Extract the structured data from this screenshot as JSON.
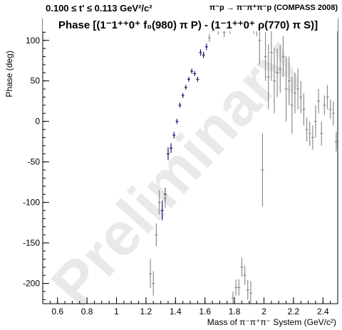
{
  "header": {
    "left": "0.100 ≤ t' ≤ 0.113 GeV²/c²",
    "right": "π⁻p → π⁻π⁺π⁻p (COMPASS 2008)"
  },
  "chart_data": {
    "type": "scatter",
    "title": "Phase [(1⁻1⁺⁺0⁺ f₀(980) π P) - (1⁻1⁺⁺0⁺ ρ(770) π S)]",
    "xlabel": "Mass of π⁻π⁺π⁻ System (GeV/c²)",
    "ylabel": "Phase (deg)",
    "watermark": "Preliminary",
    "xlim": [
      0.5,
      2.5
    ],
    "ylim": [
      -225,
      127
    ],
    "x_ticks": [
      0.6,
      0.8,
      1.0,
      1.2,
      1.4,
      1.6,
      1.8,
      2.0,
      2.2,
      2.4
    ],
    "x_tick_labels": [
      "0.6",
      "0.8",
      "1",
      "1.2",
      "1.4",
      "1.6",
      "1.8",
      "2",
      "2.2",
      "2.4"
    ],
    "y_ticks": [
      -200,
      -150,
      -100,
      -50,
      0,
      50,
      100
    ],
    "y_tick_labels": [
      "-200",
      "-150",
      "-100",
      "-50",
      "0",
      "50",
      "100"
    ],
    "colors": {
      "fit_range": "#1a1a6e",
      "outside_range": "#8c8c8c"
    },
    "series": [
      {
        "points": [
          {
            "x": 1.31,
            "y": -110,
            "err": 12
          },
          {
            "x": 1.33,
            "y": -90,
            "err": 8
          },
          {
            "x": 1.35,
            "y": -40,
            "err": 8
          },
          {
            "x": 1.37,
            "y": -33,
            "err": 6
          },
          {
            "x": 1.39,
            "y": -17,
            "err": 4
          },
          {
            "x": 1.41,
            "y": 0,
            "err": 3
          },
          {
            "x": 1.43,
            "y": 20,
            "err": 3
          },
          {
            "x": 1.45,
            "y": 32,
            "err": 3
          },
          {
            "x": 1.47,
            "y": 42,
            "err": 3
          },
          {
            "x": 1.49,
            "y": 52,
            "err": 3
          },
          {
            "x": 1.51,
            "y": 62,
            "err": 3
          },
          {
            "x": 1.53,
            "y": 59,
            "err": 3
          },
          {
            "x": 1.55,
            "y": 52,
            "err": 3
          },
          {
            "x": 1.57,
            "y": 85,
            "err": 4
          },
          {
            "x": 1.59,
            "y": 82,
            "err": 4
          },
          {
            "x": 1.61,
            "y": 92,
            "err": 4
          }
        ]
      },
      {
        "points": [
          {
            "x": 1.23,
            "y": -188,
            "err": 18
          },
          {
            "x": 1.25,
            "y": -200,
            "err": 15
          },
          {
            "x": 1.27,
            "y": -140,
            "err": 14
          },
          {
            "x": 1.29,
            "y": -100,
            "err": 15
          },
          {
            "x": 1.33,
            "y": -95,
            "err": 12
          },
          {
            "x": 1.63,
            "y": 103,
            "err": 5
          },
          {
            "x": 1.65,
            "y": 115,
            "err": 5
          },
          {
            "x": 1.67,
            "y": 120,
            "err": 5
          },
          {
            "x": 1.69,
            "y": 113,
            "err": 6
          },
          {
            "x": 1.71,
            "y": 118,
            "err": 6
          },
          {
            "x": 1.73,
            "y": 110,
            "err": 6
          },
          {
            "x": 1.75,
            "y": 121,
            "err": 7
          },
          {
            "x": 1.77,
            "y": 115,
            "err": 7
          },
          {
            "x": 1.79,
            "y": -218,
            "err": 8
          },
          {
            "x": 1.81,
            "y": -205,
            "err": 10
          },
          {
            "x": 1.83,
            "y": -205,
            "err": 10
          },
          {
            "x": 1.85,
            "y": -180,
            "err": 12
          },
          {
            "x": 1.87,
            "y": -190,
            "err": 12
          },
          {
            "x": 1.89,
            "y": -208,
            "err": 12
          },
          {
            "x": 1.91,
            "y": -212,
            "err": 15
          },
          {
            "x": 1.93,
            "y": 120,
            "err": 12
          },
          {
            "x": 1.95,
            "y": 120,
            "err": 15
          },
          {
            "x": 1.97,
            "y": 100,
            "err": 30
          },
          {
            "x": 1.99,
            "y": -60,
            "err": 45
          },
          {
            "x": 2.01,
            "y": 80,
            "err": 30
          },
          {
            "x": 2.03,
            "y": 55,
            "err": 40
          },
          {
            "x": 2.05,
            "y": 85,
            "err": 35
          },
          {
            "x": 2.07,
            "y": 50,
            "err": 40
          },
          {
            "x": 2.09,
            "y": 60,
            "err": 30
          },
          {
            "x": 2.11,
            "y": 65,
            "err": 30
          },
          {
            "x": 2.13,
            "y": 80,
            "err": 25
          },
          {
            "x": 2.15,
            "y": 40,
            "err": 40
          },
          {
            "x": 2.17,
            "y": 50,
            "err": 30
          },
          {
            "x": 2.19,
            "y": 20,
            "err": 35
          },
          {
            "x": 2.21,
            "y": 35,
            "err": 25
          },
          {
            "x": 2.23,
            "y": 40,
            "err": 25
          },
          {
            "x": 2.25,
            "y": 30,
            "err": 20
          },
          {
            "x": 2.27,
            "y": 15,
            "err": 20
          },
          {
            "x": 2.29,
            "y": -10,
            "err": 15
          },
          {
            "x": 2.31,
            "y": -15,
            "err": 15
          },
          {
            "x": 2.33,
            "y": -20,
            "err": 15
          },
          {
            "x": 2.35,
            "y": 0,
            "err": 20
          },
          {
            "x": 2.37,
            "y": 25,
            "err": 15
          },
          {
            "x": 2.39,
            "y": -15,
            "err": 15
          },
          {
            "x": 2.41,
            "y": 20,
            "err": 12
          },
          {
            "x": 2.43,
            "y": 30,
            "err": 15
          },
          {
            "x": 2.45,
            "y": 15,
            "err": 12
          },
          {
            "x": 2.47,
            "y": 10,
            "err": 15
          },
          {
            "x": 2.49,
            "y": -25,
            "err": 12
          },
          {
            "x": 2.51,
            "y": 15,
            "err": 10
          }
        ]
      }
    ]
  }
}
